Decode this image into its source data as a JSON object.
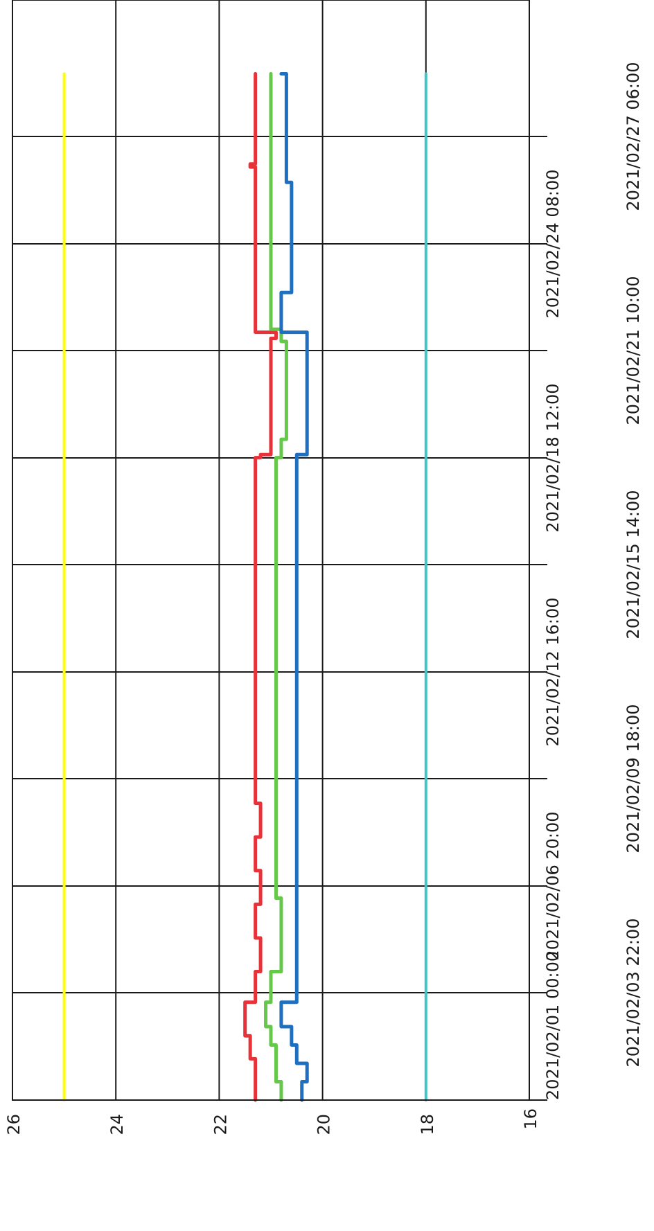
{
  "chart_data": {
    "type": "line",
    "orientation": "rotated-90-ccw",
    "grid": true,
    "ylim": [
      16,
      26
    ],
    "yticks": [
      "16",
      "18",
      "20",
      "22",
      "24",
      "26"
    ],
    "xticks": [
      "2021/02/01 00:00",
      "2021/02/03 22:00",
      "2021/02/06 20:00",
      "2021/02/09 18:00",
      "2021/02/12 16:00",
      "2021/02/15 14:00",
      "2021/02/18 12:00",
      "2021/02/21 10:00",
      "2021/02/24 08:00",
      "2021/02/27 06:00"
    ],
    "series": [
      {
        "color": "#ffff00",
        "x": [
          "2021/02/01 00:00",
          "2021/02/28 23:00"
        ],
        "y": [
          25.0,
          25.0
        ]
      },
      {
        "color": "#44c4c8",
        "x": [
          "2021/02/01 00:00",
          "2021/02/28 23:00"
        ],
        "y": [
          18.0,
          18.0
        ]
      },
      {
        "color": "#e8323a",
        "x": [
          "2021/02/01 00:00",
          "2021/02/02 02:00",
          "2021/02/02 03:00",
          "2021/02/02 17:00",
          "2021/02/02 18:00",
          "2021/02/03 10:00",
          "2021/02/03 16:00",
          "2021/02/04 12:00",
          "2021/02/05 10:00",
          "2021/02/06 08:00",
          "2021/02/07 06:00",
          "2021/02/08 04:00",
          "2021/02/09 02:00",
          "2021/02/10 00:00",
          "2021/02/12 00:00",
          "2021/02/14 00:00",
          "2021/02/16 00:00",
          "2021/02/18 00:00",
          "2021/02/18 12:00",
          "2021/02/18 14:00",
          "2021/02/20 00:00",
          "2021/02/21 18:00",
          "2021/02/21 22:00",
          "2021/02/24 00:00",
          "2021/02/26 00:00",
          "2021/02/26 10:00",
          "2021/02/26 12:00",
          "2021/02/28 23:00"
        ],
        "y": [
          21.3,
          21.3,
          21.4,
          21.4,
          21.5,
          21.5,
          21.3,
          21.2,
          21.3,
          21.2,
          21.3,
          21.2,
          21.3,
          21.3,
          21.3,
          21.3,
          21.3,
          21.3,
          21.2,
          21.0,
          21.0,
          20.9,
          21.3,
          21.3,
          21.3,
          21.4,
          21.3,
          21.3
        ]
      },
      {
        "color": "#66c84a",
        "x": [
          "2021/02/01 00:00",
          "2021/02/01 12:00",
          "2021/02/02 00:00",
          "2021/02/02 12:00",
          "2021/02/03 00:00",
          "2021/02/03 16:00",
          "2021/02/04 12:00",
          "2021/02/05 12:00",
          "2021/02/06 12:00",
          "2021/02/07 12:00",
          "2021/02/08 12:00",
          "2021/02/10 00:00",
          "2021/02/12 00:00",
          "2021/02/14 00:00",
          "2021/02/16 00:00",
          "2021/02/18 00:00",
          "2021/02/18 12:00",
          "2021/02/19 00:00",
          "2021/02/20 00:00",
          "2021/02/21 00:00",
          "2021/02/21 16:00",
          "2021/02/22 00:00",
          "2021/02/24 00:00",
          "2021/02/26 00:00",
          "2021/02/28 23:00"
        ],
        "y": [
          20.8,
          20.9,
          20.9,
          21.0,
          21.1,
          21.0,
          20.8,
          20.8,
          20.9,
          20.9,
          20.9,
          20.9,
          20.9,
          20.9,
          20.9,
          20.9,
          20.8,
          20.7,
          20.7,
          20.7,
          20.8,
          21.0,
          21.0,
          21.0,
          21.0
        ]
      },
      {
        "color": "#1f6fc0",
        "x": [
          "2021/02/01 00:00",
          "2021/02/01 12:00",
          "2021/02/02 00:00",
          "2021/02/02 12:00",
          "2021/02/03 00:00",
          "2021/02/03 16:00",
          "2021/02/04 12:00",
          "2021/02/05 12:00",
          "2021/02/06 12:00",
          "2021/02/07 12:00",
          "2021/02/08 12:00",
          "2021/02/10 00:00",
          "2021/02/12 00:00",
          "2021/02/14 00:00",
          "2021/02/16 00:00",
          "2021/02/18 00:00",
          "2021/02/18 14:00",
          "2021/02/20 00:00",
          "2021/02/21 18:00",
          "2021/02/21 22:00",
          "2021/02/23 00:00",
          "2021/02/24 00:00",
          "2021/02/26 00:00",
          "2021/02/28 23:00"
        ],
        "y": [
          20.4,
          20.3,
          20.5,
          20.6,
          20.8,
          20.5,
          20.5,
          20.5,
          20.5,
          20.5,
          20.5,
          20.5,
          20.5,
          20.5,
          20.5,
          20.5,
          20.3,
          20.3,
          20.3,
          20.8,
          20.6,
          20.6,
          20.7,
          20.8
        ]
      }
    ]
  }
}
